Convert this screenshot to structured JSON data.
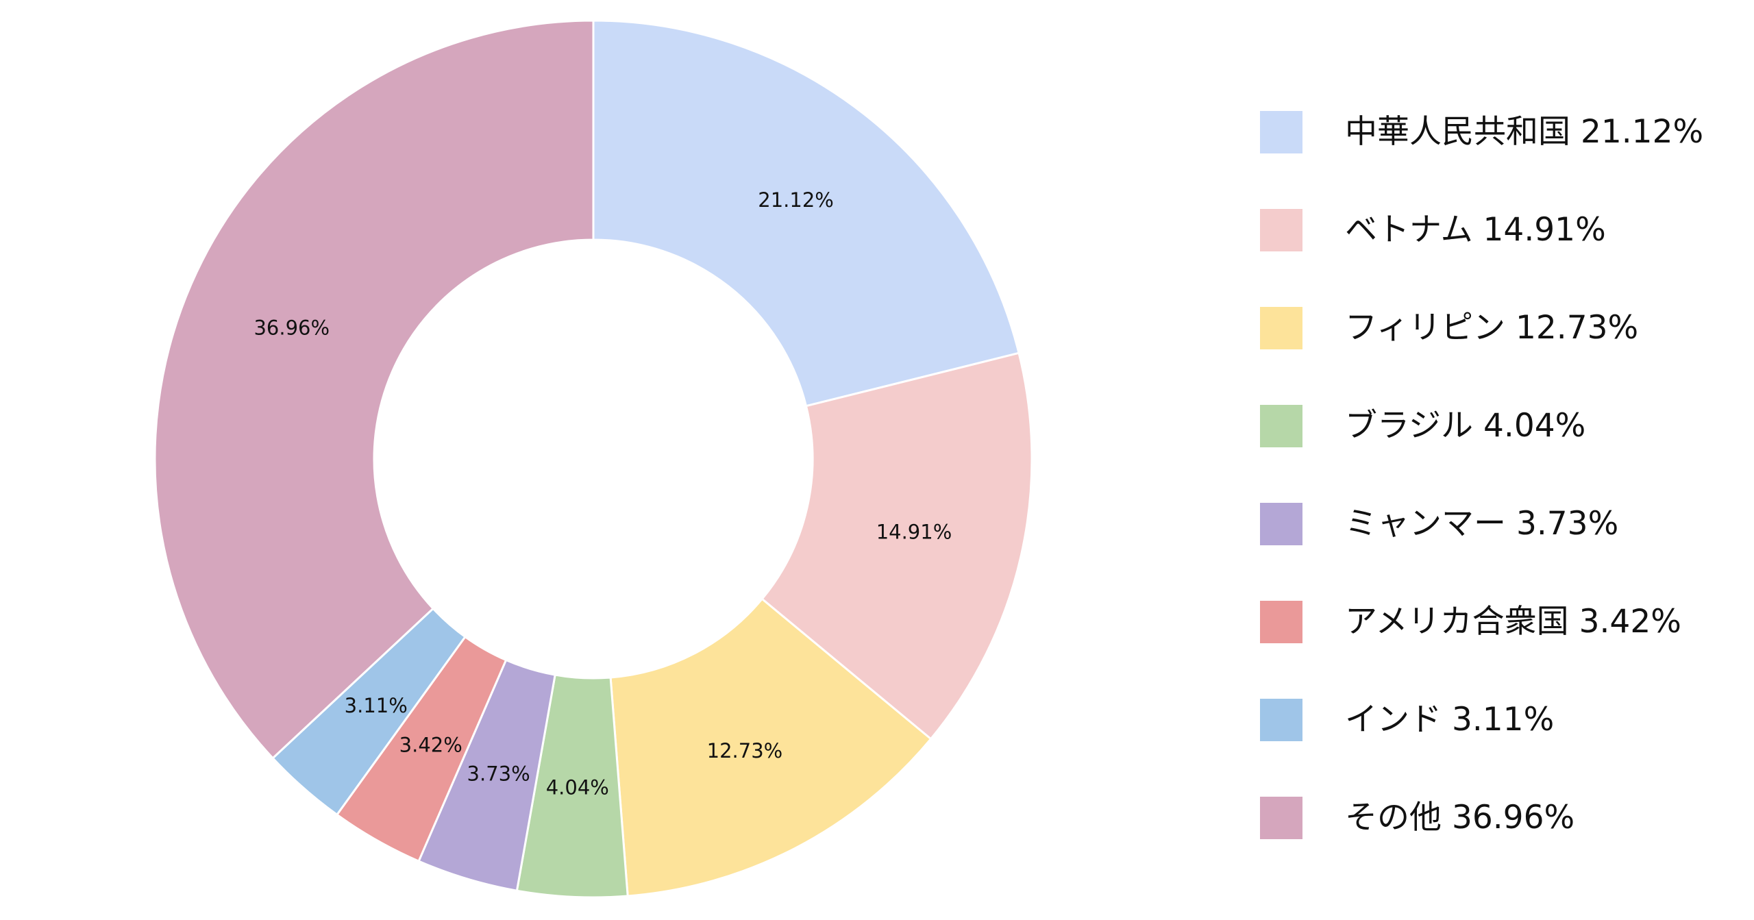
{
  "chart_data": {
    "type": "pie",
    "variant": "donut",
    "legend_placement": "right",
    "categories": [
      "中華人民共和国",
      "ベトナム",
      "フィリピン",
      "ブラジル",
      "ミャンマー",
      "アメリカ合衆国",
      "インド",
      "その他"
    ],
    "values": [
      21.12,
      14.91,
      12.73,
      4.04,
      3.73,
      3.42,
      3.11,
      36.96
    ],
    "colors": [
      "#c9daf8",
      "#f4cccc",
      "#fde39a",
      "#b6d7a8",
      "#b4a7d6",
      "#ea9999",
      "#9fc5e8",
      "#d5a6bd"
    ],
    "data_labels": [
      "21.12%",
      "14.91%",
      "12.73%",
      "4.04%",
      "3.73%",
      "3.42%",
      "3.11%",
      "36.96%"
    ],
    "legend_entries": [
      "中華人民共和国 21.12%",
      "ベトナム 14.91%",
      "フィリピン 12.73%",
      "ブラジル 4.04%",
      "ミャンマー 3.73%",
      "アメリカ合衆国 3.42%",
      "インド 3.11%",
      "その他 36.96%"
    ]
  }
}
